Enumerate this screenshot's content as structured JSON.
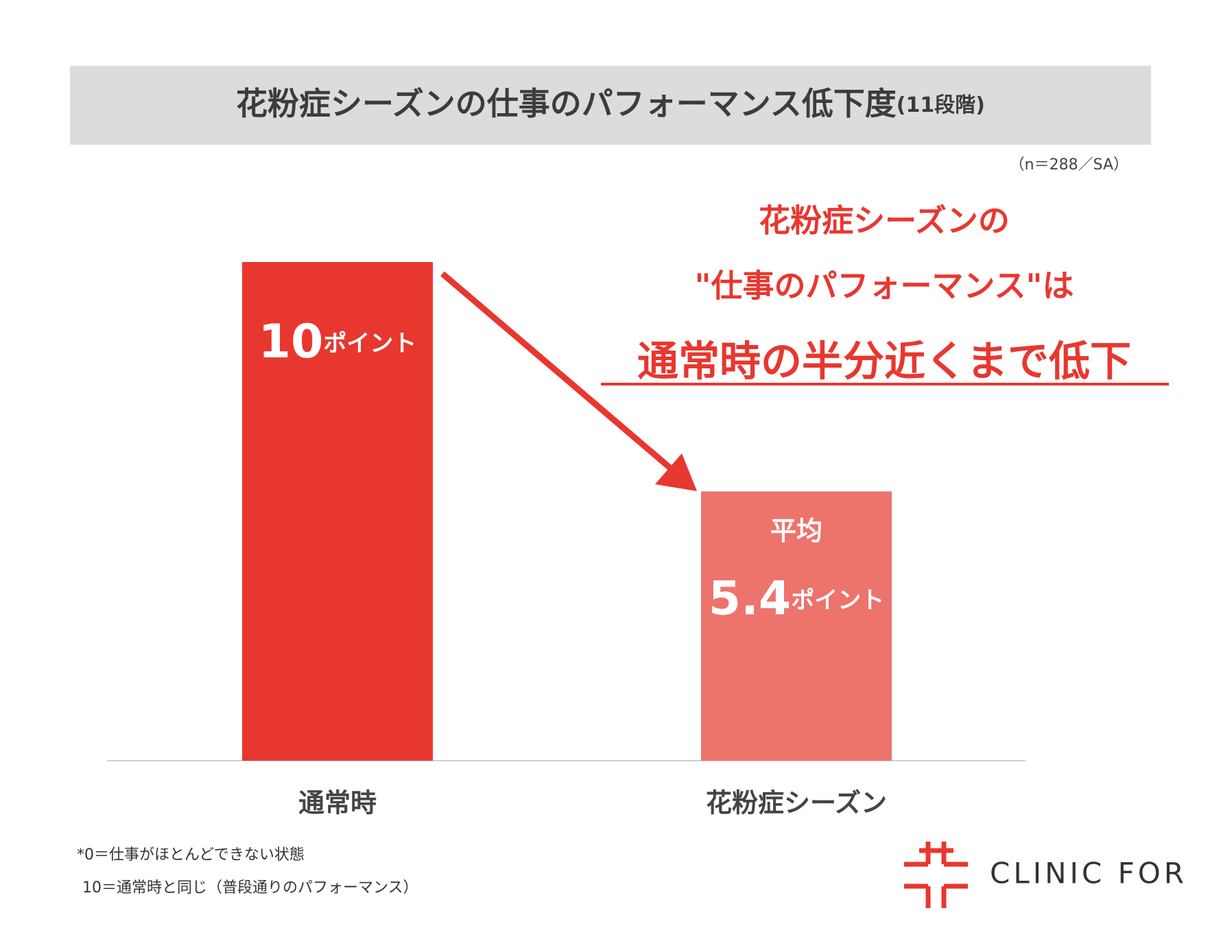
{
  "chart_data": {
    "type": "bar",
    "title": "花粉症シーズンの仕事のパフォーマンス低下度",
    "title_note": "(11段階)",
    "sample_note": "（n＝288／SA）",
    "headline": [
      "花粉症シーズンの",
      "\"仕事のパフォーマンス\"は",
      "通常時の半分近くまで低下"
    ],
    "categories": [
      "通常時",
      "花粉症シーズン"
    ],
    "values": [
      10,
      5.4
    ],
    "value_labels": [
      "10ポイント",
      "5.4ポイント"
    ],
    "average_label": "平均",
    "colors": [
      "#e8372f",
      "#ed736d"
    ],
    "footnotes": [
      "*0＝仕事がほとんどできない状態",
      "10＝通常時と同じ（普段通りのパフォーマンス）"
    ]
  },
  "logo": {
    "text": "CLINIC FOR"
  }
}
